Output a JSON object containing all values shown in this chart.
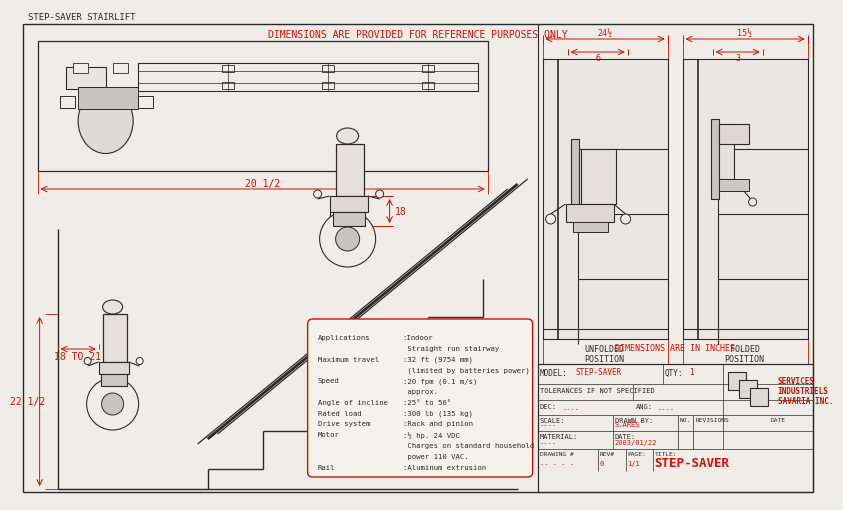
{
  "bg_color": "#f0ede8",
  "line_color": "#2a2a2a",
  "red_color": "#cc1100",
  "title": "STEP-SAVER STAIRLIFT",
  "dim_note": "DIMENSIONS ARE PROVIDED FOR REFERENCE PURPOSES ONLY",
  "dim_inches": "DIMENSIONS ARE IN INCHES",
  "dim_20_5": "20 1/2",
  "dim_18": "18",
  "dim_18_21": "18 TO 21",
  "dim_22_5": "22 1/2",
  "dim_24_5": "24½",
  "dim_6": "6",
  "dim_15_5": "15½",
  "dim_3": "3",
  "unfolded": "UNFOLDED\nPOSITION",
  "folded": "FOLDED\nPOSITION",
  "spec_lines": [
    [
      "Applications",
      ":Indoor"
    ],
    [
      "",
      " Straight run stairway"
    ],
    [
      "Maximum travel",
      ":32 ft (9754 mm)"
    ],
    [
      "",
      " (limited by batteries power)"
    ],
    [
      "Speed",
      ":20 fpm (0.1 m/s)"
    ],
    [
      "",
      " approx."
    ],
    [
      "Angle of incline",
      ":25° to 50°"
    ],
    [
      "Rated load",
      ":300 lb (135 kg)"
    ],
    [
      "Drive system",
      ":Rack and pinion"
    ],
    [
      "Motor",
      ":½ hp. 24 VDC"
    ],
    [
      "",
      " Charges on standard household"
    ],
    [
      "",
      " power 110 VAC."
    ],
    [
      "Rail",
      ":Aluminum extrusion"
    ]
  ],
  "tb_model": "STEP-SAVER",
  "tb_qty": "1",
  "tb_scale": "----",
  "tb_drawn_by": "S.ARÉS",
  "tb_material": "----",
  "tb_date": "2003/01/22",
  "tb_drawing_num": "-- - - -",
  "tb_rev": "0",
  "tb_page": "1/1",
  "tb_title": "STEP-SAVER",
  "tb_company1": "SERVICES",
  "tb_company2": "INDUSTRIELS",
  "tb_company3": "SAVARIA INC."
}
